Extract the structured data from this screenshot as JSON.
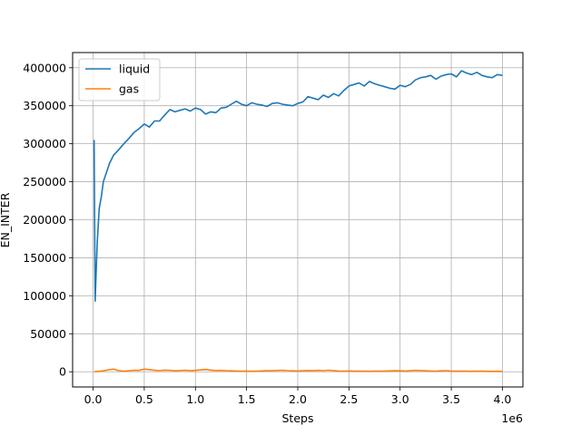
{
  "chart_data": {
    "type": "line",
    "title": "",
    "xlabel": "Steps",
    "ylabel": "EN_INTER",
    "x_offset_label": "1e6",
    "xlim": [
      -0.2,
      4.2
    ],
    "ylim": [
      -20000,
      420000
    ],
    "x_ticks": [
      0.0,
      0.5,
      1.0,
      1.5,
      2.0,
      2.5,
      3.0,
      3.5,
      4.0
    ],
    "x_tick_labels": [
      "0.0",
      "0.5",
      "1.0",
      "1.5",
      "2.0",
      "2.5",
      "3.0",
      "3.5",
      "4.0"
    ],
    "y_ticks": [
      0,
      50000,
      100000,
      150000,
      200000,
      250000,
      300000,
      350000,
      400000
    ],
    "y_tick_labels": [
      "0",
      "50000",
      "100000",
      "150000",
      "200000",
      "250000",
      "300000",
      "350000",
      "400000"
    ],
    "grid": true,
    "legend_position": "top-left",
    "series": [
      {
        "name": "liquid",
        "color": "#1f77b4",
        "x": [
          0.01,
          0.02,
          0.04,
          0.06,
          0.08,
          0.1,
          0.13,
          0.16,
          0.2,
          0.25,
          0.3,
          0.35,
          0.4,
          0.45,
          0.5,
          0.55,
          0.6,
          0.65,
          0.7,
          0.75,
          0.8,
          0.85,
          0.9,
          0.95,
          1.0,
          1.05,
          1.1,
          1.15,
          1.2,
          1.25,
          1.3,
          1.35,
          1.4,
          1.45,
          1.5,
          1.55,
          1.6,
          1.65,
          1.7,
          1.75,
          1.8,
          1.85,
          1.9,
          1.95,
          2.0,
          2.05,
          2.1,
          2.15,
          2.2,
          2.25,
          2.3,
          2.35,
          2.4,
          2.45,
          2.5,
          2.55,
          2.6,
          2.65,
          2.7,
          2.75,
          2.8,
          2.85,
          2.9,
          2.95,
          3.0,
          3.05,
          3.1,
          3.15,
          3.2,
          3.25,
          3.3,
          3.35,
          3.4,
          3.45,
          3.5,
          3.55,
          3.6,
          3.65,
          3.7,
          3.75,
          3.8,
          3.85,
          3.9,
          3.95,
          4.0
        ],
        "values": [
          305000,
          93000,
          170000,
          215000,
          230000,
          250000,
          262000,
          274000,
          285000,
          292000,
          300000,
          307000,
          315000,
          320000,
          326000,
          322000,
          330000,
          330000,
          338000,
          345000,
          342000,
          344000,
          346000,
          343000,
          347000,
          345000,
          339000,
          342000,
          341000,
          347000,
          348000,
          352000,
          356000,
          352000,
          350000,
          354000,
          352000,
          351000,
          349000,
          353000,
          354000,
          352000,
          351000,
          350000,
          353000,
          355000,
          362000,
          360000,
          358000,
          364000,
          361000,
          366000,
          363000,
          370000,
          376000,
          378000,
          380000,
          376000,
          382000,
          379000,
          377000,
          375000,
          373000,
          372000,
          377000,
          375000,
          378000,
          384000,
          387000,
          388000,
          390000,
          385000,
          389000,
          391000,
          392000,
          388000,
          396000,
          393000,
          391000,
          394000,
          390000,
          388000,
          387000,
          391000,
          390000
        ]
      },
      {
        "name": "gas",
        "color": "#ff7f0e",
        "x": [
          0.01,
          0.05,
          0.1,
          0.15,
          0.2,
          0.25,
          0.3,
          0.35,
          0.4,
          0.45,
          0.5,
          0.55,
          0.6,
          0.65,
          0.7,
          0.75,
          0.8,
          0.85,
          0.9,
          0.95,
          1.0,
          1.05,
          1.1,
          1.15,
          1.2,
          1.25,
          1.3,
          1.35,
          1.4,
          1.45,
          1.5,
          1.55,
          1.6,
          1.65,
          1.7,
          1.75,
          1.8,
          1.85,
          1.9,
          1.95,
          2.0,
          2.05,
          2.1,
          2.15,
          2.2,
          2.25,
          2.3,
          2.35,
          2.4,
          2.45,
          2.5,
          2.55,
          2.6,
          2.65,
          2.7,
          2.75,
          2.8,
          2.85,
          2.9,
          2.95,
          3.0,
          3.05,
          3.1,
          3.15,
          3.2,
          3.25,
          3.3,
          3.35,
          3.4,
          3.45,
          3.5,
          3.55,
          3.6,
          3.65,
          3.7,
          3.75,
          3.8,
          3.85,
          3.9,
          3.95,
          4.0
        ],
        "values": [
          0,
          500,
          1200,
          2500,
          3500,
          1500,
          800,
          1200,
          2000,
          1800,
          3500,
          2800,
          2000,
          1500,
          2200,
          1800,
          1200,
          1600,
          2000,
          1400,
          1800,
          2400,
          3000,
          2200,
          1600,
          1800,
          1400,
          1200,
          1000,
          800,
          1000,
          600,
          900,
          1100,
          1400,
          1300,
          1700,
          2000,
          1500,
          1200,
          1000,
          1300,
          1600,
          1400,
          1800,
          1500,
          2100,
          1300,
          1000,
          900,
          1100,
          900,
          700,
          800,
          600,
          900,
          700,
          1000,
          1100,
          1300,
          1200,
          1000,
          1400,
          1800,
          1600,
          1200,
          1000,
          900,
          1200,
          1500,
          1000,
          800,
          900,
          700,
          600,
          800,
          700,
          600,
          500,
          600,
          500
        ]
      }
    ]
  }
}
